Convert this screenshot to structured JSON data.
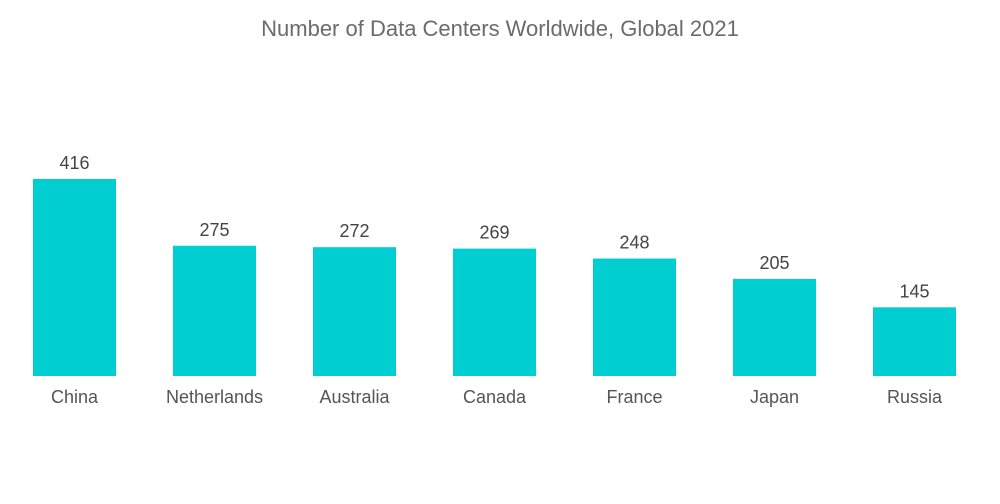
{
  "chart_data": {
    "type": "bar",
    "title": "Number of Data Centers Worldwide, Global 2021",
    "categories": [
      "China",
      "Netherlands",
      "Australia",
      "Canada",
      "France",
      "Japan",
      "Russia"
    ],
    "values": [
      416,
      275,
      272,
      269,
      248,
      205,
      145
    ],
    "value_labels": [
      "416",
      "275",
      "272",
      "269",
      "248",
      "205",
      "145"
    ],
    "xlabel": "",
    "ylabel": "",
    "ylim": [
      0,
      416
    ],
    "grid": false,
    "colors": {
      "bar": "#00CED1"
    }
  }
}
